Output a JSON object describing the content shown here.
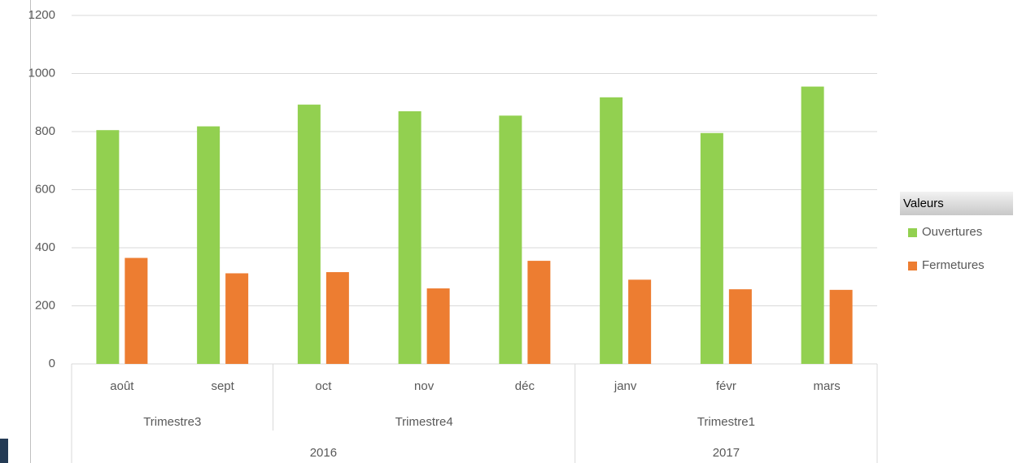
{
  "chart_data": {
    "type": "bar",
    "category_groups": [
      {
        "label": "2016",
        "groups": [
          {
            "label": "Trimestre3",
            "categories": [
              "août",
              "sept"
            ]
          },
          {
            "label": "Trimestre4",
            "categories": [
              "oct",
              "nov",
              "déc"
            ]
          }
        ]
      },
      {
        "label": "2017",
        "groups": [
          {
            "label": "Trimestre1",
            "categories": [
              "janv",
              "févr",
              "mars"
            ]
          }
        ]
      }
    ],
    "series": [
      {
        "name": "Ouvertures",
        "color": "#92d050",
        "values": [
          805,
          818,
          893,
          870,
          855,
          918,
          795,
          955
        ]
      },
      {
        "name": "Fermetures",
        "color": "#ed7d31",
        "values": [
          365,
          312,
          316,
          260,
          355,
          290,
          257,
          255
        ]
      }
    ],
    "ylim": [
      0,
      1200
    ],
    "yticks": [
      0,
      200,
      400,
      600,
      800,
      1000,
      1200
    ],
    "grid": true,
    "legend_title": "Valeurs",
    "legend": "right"
  }
}
